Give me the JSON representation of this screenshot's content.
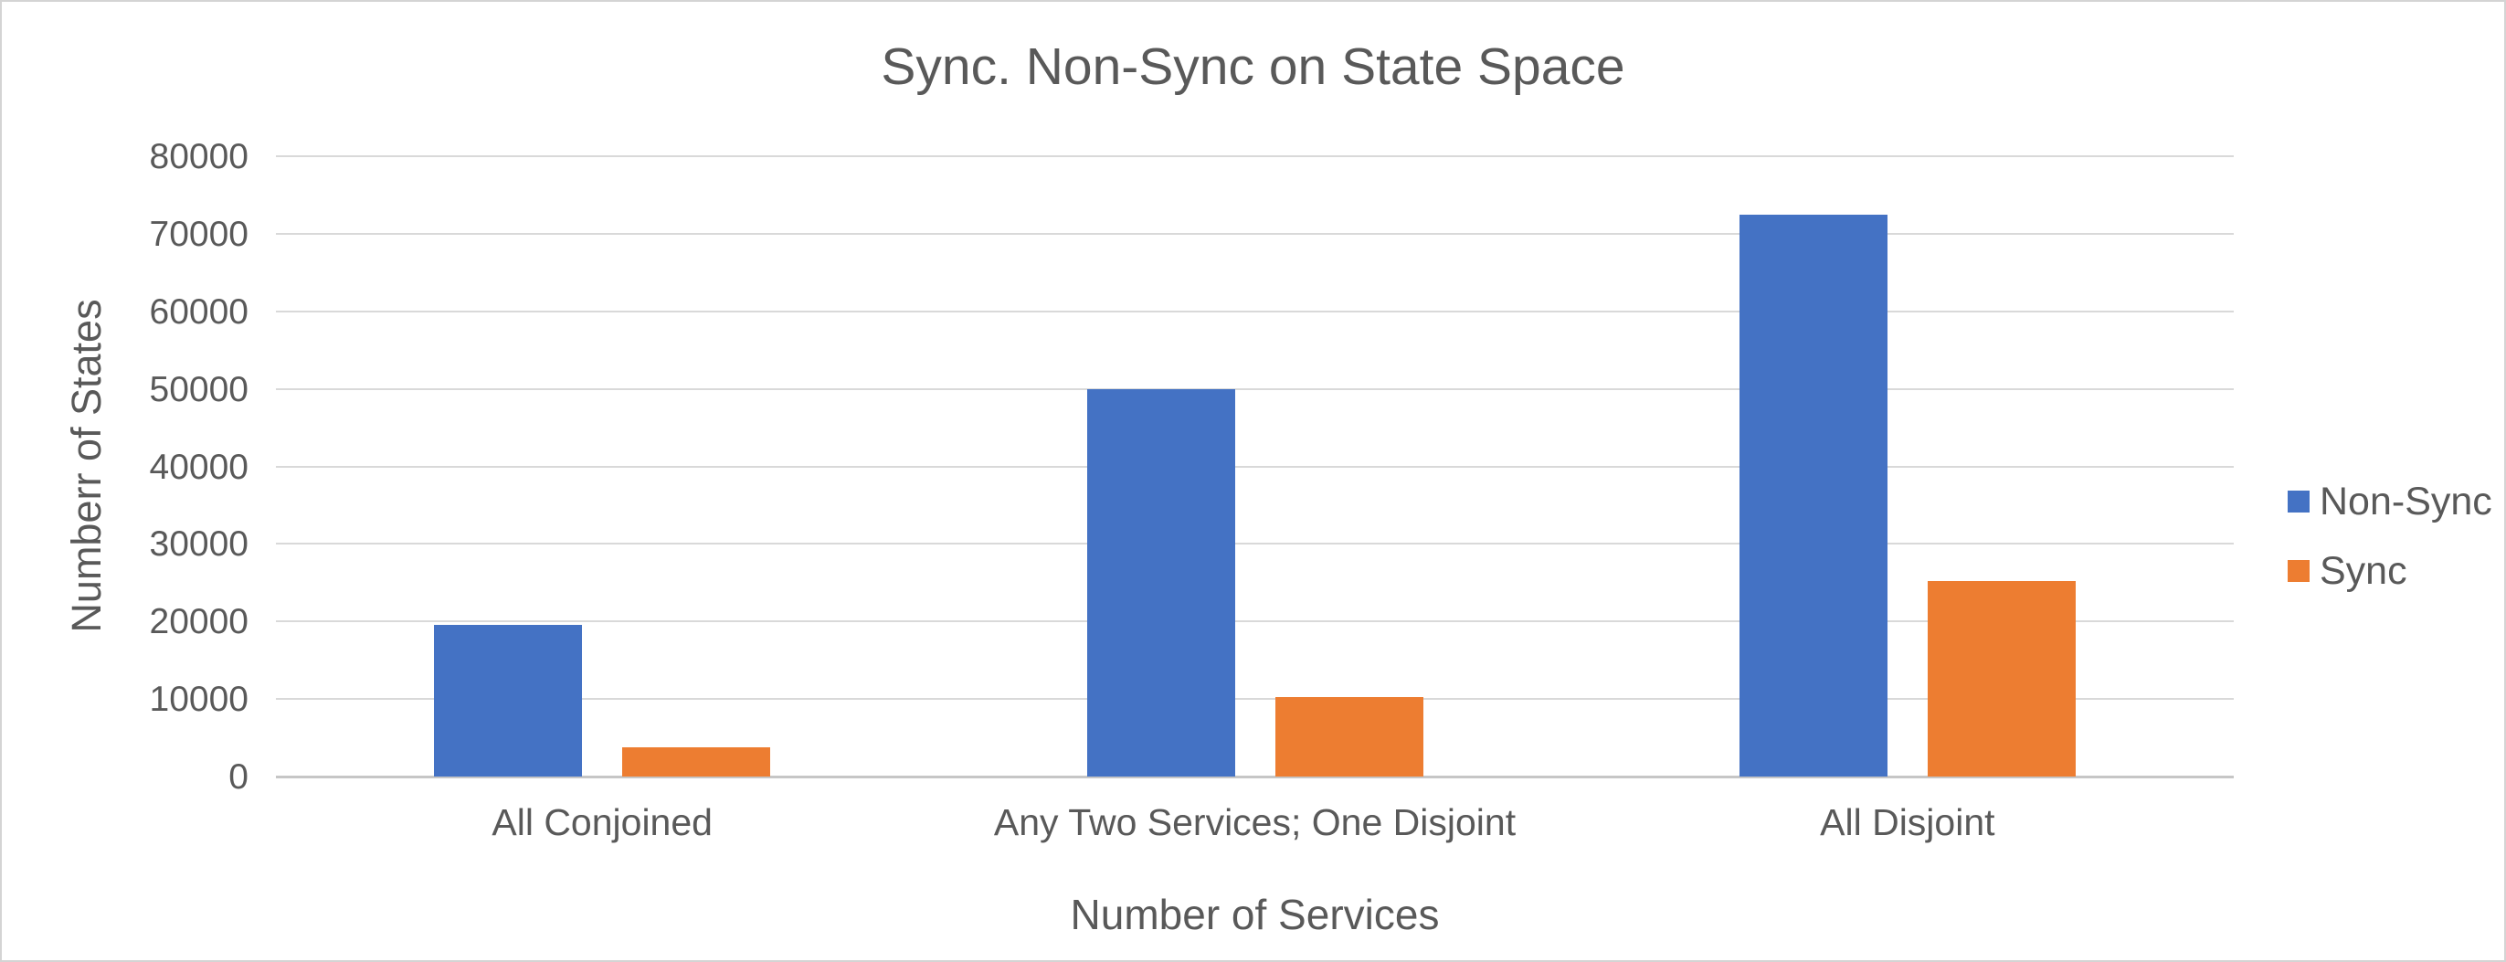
{
  "chart_data": {
    "type": "bar",
    "title": "Sync. Non-Sync on State Space",
    "xlabel": "Number of Services",
    "ylabel": "Numberr of States",
    "categories": [
      "All Conjoined",
      "Any Two Services; One Disjoint",
      "All Disjoint"
    ],
    "series": [
      {
        "name": "Non-Sync",
        "color": "#4472C4",
        "values": [
          19600,
          50000,
          72500
        ]
      },
      {
        "name": "Sync",
        "color": "#ED7D31",
        "values": [
          3800,
          10300,
          25200
        ]
      }
    ],
    "ylim": [
      0,
      80000
    ],
    "yticks": [
      "0",
      "10000",
      "20000",
      "30000",
      "40000",
      "50000",
      "60000",
      "70000",
      "80000"
    ],
    "grid": "horizontal-only",
    "legend_position": "right-middle",
    "colors": {
      "text": "#595959",
      "gridline": "#D9D9D9",
      "axis_line": "#C6C6C6",
      "background": "#FFFFFF",
      "frame_border": "#D4D4D4"
    }
  }
}
